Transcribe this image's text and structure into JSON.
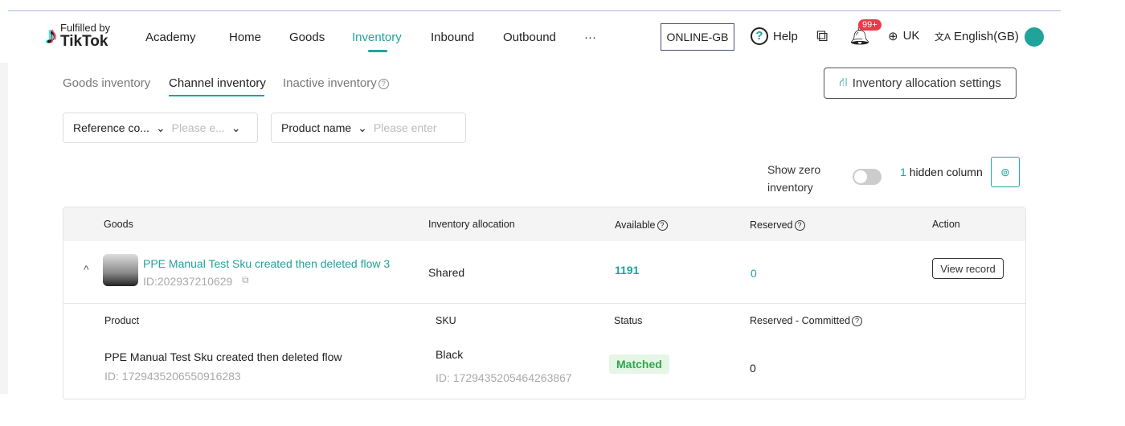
{
  "header": {
    "logo_line1": "Fulfilled by",
    "logo_line2": "TikTok",
    "nav": [
      "Academy",
      "Home",
      "Goods",
      "Inventory",
      "Inbound",
      "Outbound",
      "···"
    ],
    "store": "ONLINE-GB",
    "help": "Help",
    "notifications": "99+",
    "region": "UK",
    "language": "English(GB)"
  },
  "tabs": [
    "Goods inventory",
    "Channel inventory",
    "Inactive inventory"
  ],
  "allocation_settings": "Inventory allocation settings",
  "filters": {
    "ref_label": "Reference co...",
    "ref_placeholder": "Please e...",
    "product_label": "Product name",
    "product_placeholder": "Please enter"
  },
  "show_zero_line1": "Show zero",
  "show_zero_line2": "inventory",
  "show_zero_on": false,
  "hidden_count": "1",
  "hidden_label": "hidden column",
  "columns": [
    "Goods",
    "Inventory allocation",
    "Available",
    "Reserved",
    "Action"
  ],
  "row": {
    "name": "PPE Manual Test Sku created then deleted flow 3",
    "id": "ID:202937210629",
    "allocation": "Shared",
    "available": "1191",
    "reserved": "0",
    "action": "View record"
  },
  "sub_columns": [
    "Product",
    "SKU",
    "Status",
    "Reserved - Committed"
  ],
  "sub_row": {
    "product": "PPE Manual Test Sku created then deleted flow",
    "product_id": "ID: 1729435206550916283",
    "sku": "Black",
    "sku_id": "ID: 1729435205464263867",
    "status": "Matched",
    "reserved_committed": "0"
  },
  "colors": {
    "accent": "#1fa39b",
    "badge": "#f0384b",
    "matched": "#2ca84b"
  }
}
